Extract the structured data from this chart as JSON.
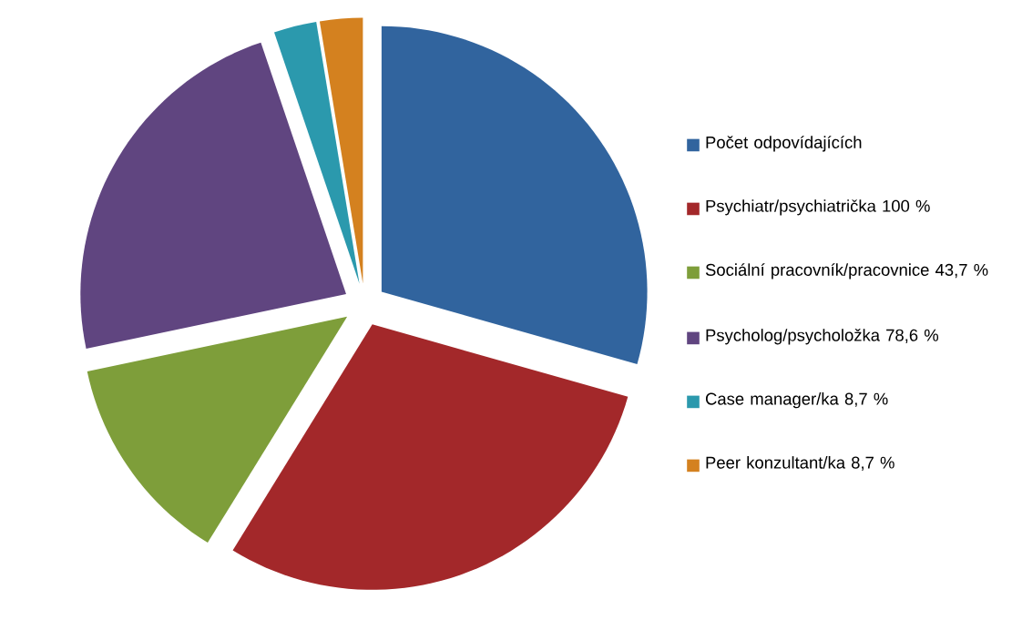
{
  "chart_data": {
    "type": "pie",
    "categories": [
      "Počet odpovídajících",
      "Psychiatr/psychiatrička  100 %",
      "Sociální pracovník/pracovnice  43,7 %",
      "Psycholog/psycholožka  78,6 %",
      "Case manager/ka  8,7 %",
      "Peer konzultant/ka  8,7 %"
    ],
    "values": [
      29.4,
      29.4,
      12.9,
      23.1,
      2.6,
      2.6
    ],
    "colors": [
      "#31649e",
      "#a3282a",
      "#7e9e3a",
      "#604580",
      "#2b99ad",
      "#d4811f"
    ],
    "legend": "right"
  }
}
